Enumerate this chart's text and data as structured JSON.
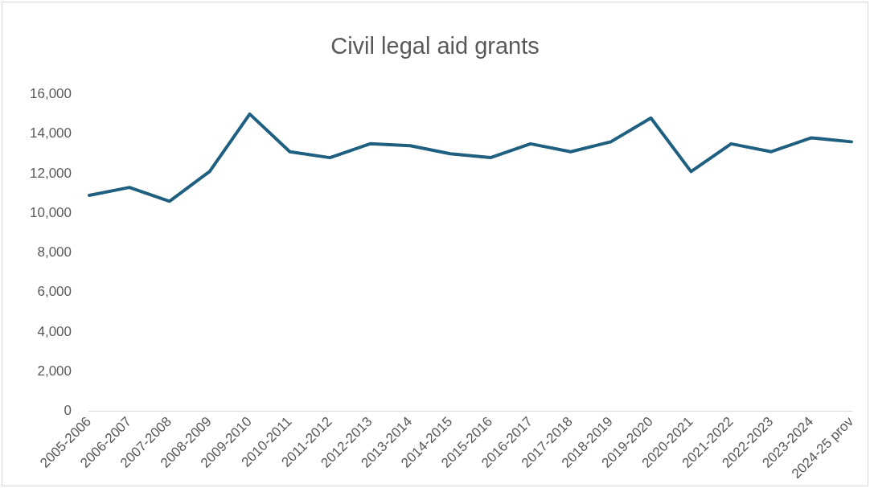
{
  "chart_data": {
    "type": "line",
    "title": "Civil legal aid grants",
    "categories": [
      "2005-2006",
      "2006-2007",
      "2007-2008",
      "2008-2009",
      "2009-2010",
      "2010-2011",
      "2011-2012",
      "2012-2013",
      "2013-2014",
      "2014-2015",
      "2015-2016",
      "2016-2017",
      "2017-2018",
      "2018-2019",
      "2019-2020",
      "2020-2021",
      "2021-2022",
      "2022-2023",
      "2023-2024",
      "2024-25 prov"
    ],
    "series": [
      {
        "color": "#1f5f7f",
        "values": [
          10900,
          11300,
          10600,
          12100,
          15000,
          13100,
          12800,
          13500,
          13400,
          13000,
          12800,
          13500,
          13100,
          13600,
          14800,
          12100,
          13500,
          13100,
          13800,
          13600
        ]
      }
    ],
    "ylim": [
      0,
      16000
    ],
    "yticks": [
      {
        "value": 0,
        "label": "0"
      },
      {
        "value": 2000,
        "label": "2,000"
      },
      {
        "value": 4000,
        "label": "4,000"
      },
      {
        "value": 6000,
        "label": "6,000"
      },
      {
        "value": 8000,
        "label": "8,000"
      },
      {
        "value": 10000,
        "label": "10,000"
      },
      {
        "value": 12000,
        "label": "12,000"
      },
      {
        "value": 14000,
        "label": "14,000"
      },
      {
        "value": 16000,
        "label": "16,000"
      }
    ],
    "grid": false,
    "legend": false,
    "marker": "none",
    "line_style": "solid"
  }
}
